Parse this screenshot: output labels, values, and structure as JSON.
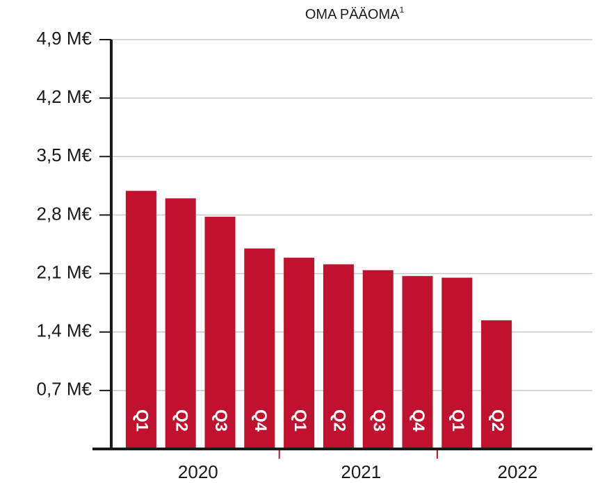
{
  "chart_data": {
    "type": "bar",
    "title": "OMA PÄÄOMA",
    "title_superscript": "1",
    "groups": [
      {
        "label": "2020",
        "categories": [
          "Q1",
          "Q2",
          "Q3",
          "Q4"
        ],
        "values": [
          3.09,
          3.0,
          2.78,
          2.4
        ]
      },
      {
        "label": "2021",
        "categories": [
          "Q1",
          "Q2",
          "Q3",
          "Q4"
        ],
        "values": [
          2.29,
          2.21,
          2.14,
          2.07
        ]
      },
      {
        "label": "2022",
        "categories": [
          "Q1",
          "Q2"
        ],
        "values": [
          2.05,
          1.54
        ]
      }
    ],
    "color": "#c0112f",
    "ylim": [
      0,
      4.9
    ],
    "yticks": [
      {
        "value": 0.7,
        "label": "0,7 M€"
      },
      {
        "value": 1.4,
        "label": "1,4 M€"
      },
      {
        "value": 2.1,
        "label": "2,1 M€"
      },
      {
        "value": 2.8,
        "label": "2,8 M€"
      },
      {
        "value": 3.5,
        "label": "3,5 M€"
      },
      {
        "value": 4.2,
        "label": "4,2 M€"
      },
      {
        "value": 4.9,
        "label": "4,9 M€"
      }
    ],
    "grid": true
  }
}
